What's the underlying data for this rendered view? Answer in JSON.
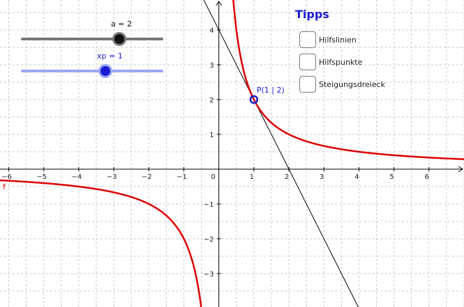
{
  "sliders": [
    {
      "label": "a = 2",
      "color": "#777777",
      "knob_color": "#111111",
      "value": 2
    },
    {
      "label": "xp = 1",
      "color": "#9aa6f5",
      "knob_color": "#1a1ad4",
      "value": 1
    }
  ],
  "tips": {
    "title": "Tipps",
    "items": [
      {
        "label": "Hilfslinien"
      },
      {
        "label": "Hilfspunkte"
      },
      {
        "label": "Steigungsdreieck"
      }
    ]
  },
  "point": {
    "label": "P(1 | 2)",
    "x": 1,
    "y": 2,
    "color": "#1a1ad4"
  },
  "chart_data": {
    "type": "line",
    "x_ticks": [
      "−6",
      "−5",
      "−4",
      "−3",
      "−2",
      "−1",
      "0",
      "1",
      "2",
      "3",
      "4",
      "5",
      "6"
    ],
    "y_ticks": [
      "4",
      "3",
      "2",
      "1",
      "−1",
      "−2",
      "−3"
    ],
    "xlim": [
      -6.25,
      7.0
    ],
    "ylim": [
      -3.96,
      4.86
    ],
    "grid": true,
    "series": [
      {
        "name": "f",
        "function": "a/x",
        "a": 2,
        "color": "#dd0000"
      },
      {
        "function": "tangent",
        "slope": -2,
        "intercept": 4,
        "color": "#000000"
      }
    ]
  }
}
